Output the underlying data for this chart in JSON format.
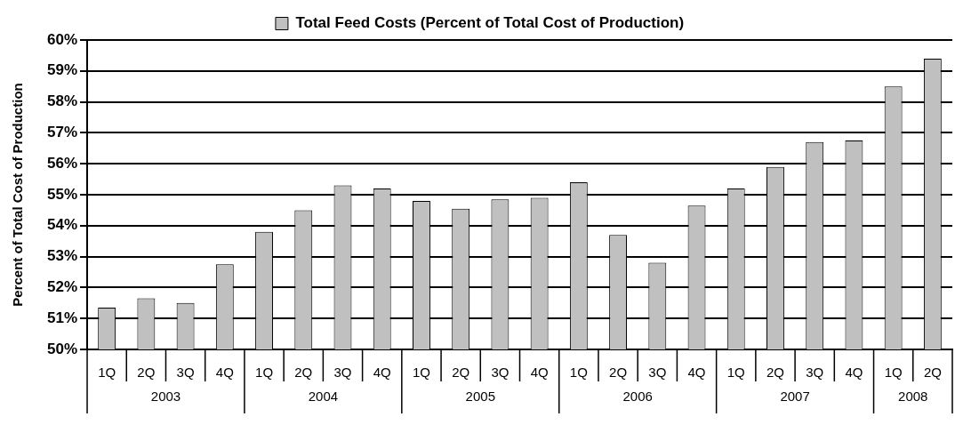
{
  "chart_data": {
    "type": "bar",
    "ylabel": "Percent of Total Cost of Production",
    "categories": [
      "1Q",
      "2Q",
      "3Q",
      "4Q",
      "1Q",
      "2Q",
      "3Q",
      "4Q",
      "1Q",
      "2Q",
      "3Q",
      "4Q",
      "1Q",
      "2Q",
      "3Q",
      "4Q",
      "1Q",
      "2Q",
      "3Q",
      "4Q",
      "1Q",
      "2Q"
    ],
    "series": [
      {
        "name": "Total Feed Costs (Percent of Total Cost of Production)",
        "color": "#c0c0c0",
        "values": [
          51.35,
          51.65,
          51.5,
          52.75,
          53.8,
          54.5,
          55.3,
          55.2,
          54.8,
          54.55,
          54.85,
          54.9,
          55.4,
          53.7,
          52.8,
          54.65,
          55.2,
          55.9,
          56.7,
          56.75,
          58.5,
          59.4
        ]
      }
    ],
    "ylim": [
      50,
      60
    ],
    "yticks": [
      {
        "value": 50,
        "label": "50%"
      },
      {
        "value": 51,
        "label": "51%"
      },
      {
        "value": 52,
        "label": "52%"
      },
      {
        "value": 53,
        "label": "53%"
      },
      {
        "value": 54,
        "label": "54%"
      },
      {
        "value": 55,
        "label": "55%"
      },
      {
        "value": 56,
        "label": "56%"
      },
      {
        "value": 57,
        "label": "57%"
      },
      {
        "value": 58,
        "label": "58%"
      },
      {
        "value": 59,
        "label": "59%"
      },
      {
        "value": 60,
        "label": "60%"
      }
    ],
    "annotations": [
      "2003",
      "2004",
      "2005",
      "2006",
      "2007",
      "2008"
    ],
    "grid": "y",
    "legend": "top"
  }
}
